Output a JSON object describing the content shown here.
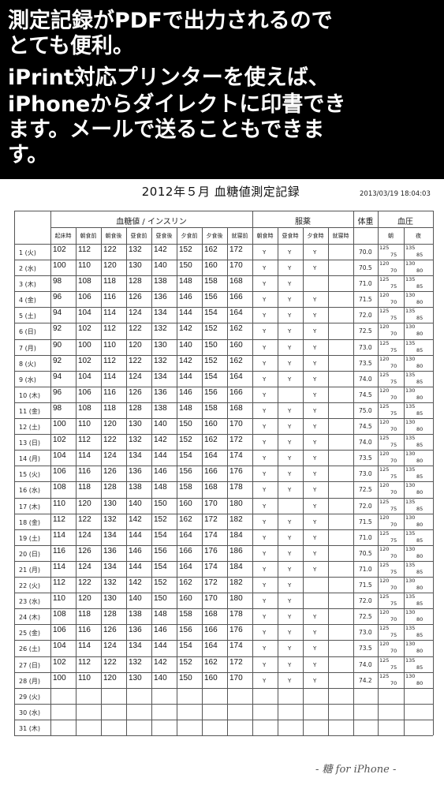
{
  "banner": {
    "lines": [
      "測定記録がPDFで出力されるので",
      "とても便利。",
      "iPrint対応プリンターを使えば、",
      "iPhoneからダイレクトに印書でき",
      "ます。メールで送ることもできま",
      "す。"
    ]
  },
  "document": {
    "title": "2012年５月 血糖値測定記録",
    "timestamp": "2013/03/19 18:04:03",
    "footer": "- 糖 for iPhone -"
  },
  "headers": {
    "glucose_group": "血糖値 / インスリン",
    "medication_group": "服薬",
    "weight": "体重",
    "bp_group": "血圧",
    "glucose_cols": [
      "起床時",
      "朝食前",
      "朝食後",
      "昼食前",
      "昼食後",
      "夕食前",
      "夕食後",
      "就寝前"
    ],
    "medication_cols": [
      "朝食時",
      "昼食時",
      "夕食時",
      "就寝時"
    ],
    "bp_cols": [
      "朝",
      "夜"
    ]
  },
  "rows": [
    {
      "day": "1 (火)",
      "g": [
        102,
        112,
        122,
        132,
        142,
        152,
        162,
        172
      ],
      "m": [
        "Y",
        "Y",
        "Y",
        ""
      ],
      "w": "70.0",
      "bm": [
        "125",
        "75"
      ],
      "bn": [
        "135",
        "85"
      ]
    },
    {
      "day": "2 (水)",
      "g": [
        100,
        110,
        120,
        130,
        140,
        150,
        160,
        170
      ],
      "m": [
        "Y",
        "Y",
        "Y",
        ""
      ],
      "w": "70.5",
      "bm": [
        "120",
        "70"
      ],
      "bn": [
        "130",
        "80"
      ]
    },
    {
      "day": "3 (木)",
      "g": [
        98,
        108,
        118,
        128,
        138,
        148,
        158,
        168
      ],
      "m": [
        "Y",
        "Y",
        "",
        ""
      ],
      "w": "71.0",
      "bm": [
        "125",
        "75"
      ],
      "bn": [
        "135",
        "85"
      ]
    },
    {
      "day": "4 (金)",
      "g": [
        96,
        106,
        116,
        126,
        136,
        146,
        156,
        166
      ],
      "m": [
        "Y",
        "Y",
        "Y",
        ""
      ],
      "w": "71.5",
      "bm": [
        "120",
        "70"
      ],
      "bn": [
        "130",
        "80"
      ]
    },
    {
      "day": "5 (土)",
      "g": [
        94,
        104,
        114,
        124,
        134,
        144,
        154,
        164
      ],
      "m": [
        "Y",
        "Y",
        "Y",
        ""
      ],
      "w": "72.0",
      "bm": [
        "125",
        "75"
      ],
      "bn": [
        "135",
        "85"
      ]
    },
    {
      "day": "6 (日)",
      "g": [
        92,
        102,
        112,
        122,
        132,
        142,
        152,
        162
      ],
      "m": [
        "Y",
        "Y",
        "Y",
        ""
      ],
      "w": "72.5",
      "bm": [
        "120",
        "70"
      ],
      "bn": [
        "130",
        "80"
      ]
    },
    {
      "day": "7 (月)",
      "g": [
        90,
        100,
        110,
        120,
        130,
        140,
        150,
        160
      ],
      "m": [
        "Y",
        "Y",
        "Y",
        ""
      ],
      "w": "73.0",
      "bm": [
        "125",
        "75"
      ],
      "bn": [
        "135",
        "85"
      ]
    },
    {
      "day": "8 (火)",
      "g": [
        92,
        102,
        112,
        122,
        132,
        142,
        152,
        162
      ],
      "m": [
        "Y",
        "Y",
        "Y",
        ""
      ],
      "w": "73.5",
      "bm": [
        "120",
        "70"
      ],
      "bn": [
        "130",
        "80"
      ]
    },
    {
      "day": "9 (水)",
      "g": [
        94,
        104,
        114,
        124,
        134,
        144,
        154,
        164
      ],
      "m": [
        "Y",
        "Y",
        "Y",
        ""
      ],
      "w": "74.0",
      "bm": [
        "125",
        "75"
      ],
      "bn": [
        "135",
        "85"
      ]
    },
    {
      "day": "10 (木)",
      "g": [
        96,
        106,
        116,
        126,
        136,
        146,
        156,
        166
      ],
      "m": [
        "Y",
        "",
        "Y",
        ""
      ],
      "w": "74.5",
      "bm": [
        "120",
        "70"
      ],
      "bn": [
        "130",
        "80"
      ]
    },
    {
      "day": "11 (金)",
      "g": [
        98,
        108,
        118,
        128,
        138,
        148,
        158,
        168
      ],
      "m": [
        "Y",
        "Y",
        "Y",
        ""
      ],
      "w": "75.0",
      "bm": [
        "125",
        "75"
      ],
      "bn": [
        "135",
        "85"
      ]
    },
    {
      "day": "12 (土)",
      "g": [
        100,
        110,
        120,
        130,
        140,
        150,
        160,
        170
      ],
      "m": [
        "Y",
        "Y",
        "Y",
        ""
      ],
      "w": "74.5",
      "bm": [
        "120",
        "70"
      ],
      "bn": [
        "130",
        "80"
      ]
    },
    {
      "day": "13 (日)",
      "g": [
        102,
        112,
        122,
        132,
        142,
        152,
        162,
        172
      ],
      "m": [
        "Y",
        "Y",
        "Y",
        ""
      ],
      "w": "74.0",
      "bm": [
        "125",
        "75"
      ],
      "bn": [
        "135",
        "85"
      ]
    },
    {
      "day": "14 (月)",
      "g": [
        104,
        114,
        124,
        134,
        144,
        154,
        164,
        174
      ],
      "m": [
        "Y",
        "Y",
        "Y",
        ""
      ],
      "w": "73.5",
      "bm": [
        "120",
        "70"
      ],
      "bn": [
        "130",
        "80"
      ]
    },
    {
      "day": "15 (火)",
      "g": [
        106,
        116,
        126,
        136,
        146,
        156,
        166,
        176
      ],
      "m": [
        "Y",
        "Y",
        "Y",
        ""
      ],
      "w": "73.0",
      "bm": [
        "125",
        "75"
      ],
      "bn": [
        "135",
        "85"
      ]
    },
    {
      "day": "16 (水)",
      "g": [
        108,
        118,
        128,
        138,
        148,
        158,
        168,
        178
      ],
      "m": [
        "Y",
        "Y",
        "Y",
        ""
      ],
      "w": "72.5",
      "bm": [
        "120",
        "70"
      ],
      "bn": [
        "130",
        "80"
      ]
    },
    {
      "day": "17 (木)",
      "g": [
        110,
        120,
        130,
        140,
        150,
        160,
        170,
        180
      ],
      "m": [
        "Y",
        "",
        "Y",
        ""
      ],
      "w": "72.0",
      "bm": [
        "125",
        "75"
      ],
      "bn": [
        "135",
        "85"
      ]
    },
    {
      "day": "18 (金)",
      "g": [
        112,
        122,
        132,
        142,
        152,
        162,
        172,
        182
      ],
      "m": [
        "Y",
        "Y",
        "Y",
        ""
      ],
      "w": "71.5",
      "bm": [
        "120",
        "70"
      ],
      "bn": [
        "130",
        "80"
      ]
    },
    {
      "day": "19 (土)",
      "g": [
        114,
        124,
        134,
        144,
        154,
        164,
        174,
        184
      ],
      "m": [
        "Y",
        "Y",
        "Y",
        ""
      ],
      "w": "71.0",
      "bm": [
        "125",
        "75"
      ],
      "bn": [
        "135",
        "85"
      ]
    },
    {
      "day": "20 (日)",
      "g": [
        116,
        126,
        136,
        146,
        156,
        166,
        176,
        186
      ],
      "m": [
        "Y",
        "Y",
        "Y",
        ""
      ],
      "w": "70.5",
      "bm": [
        "120",
        "70"
      ],
      "bn": [
        "130",
        "80"
      ]
    },
    {
      "day": "21 (月)",
      "g": [
        114,
        124,
        134,
        144,
        154,
        164,
        174,
        184
      ],
      "m": [
        "Y",
        "Y",
        "Y",
        ""
      ],
      "w": "71.0",
      "bm": [
        "125",
        "75"
      ],
      "bn": [
        "135",
        "85"
      ]
    },
    {
      "day": "22 (火)",
      "g": [
        112,
        122,
        132,
        142,
        152,
        162,
        172,
        182
      ],
      "m": [
        "Y",
        "Y",
        "",
        ""
      ],
      "w": "71.5",
      "bm": [
        "120",
        "70"
      ],
      "bn": [
        "130",
        "80"
      ]
    },
    {
      "day": "23 (水)",
      "g": [
        110,
        120,
        130,
        140,
        150,
        160,
        170,
        180
      ],
      "m": [
        "Y",
        "Y",
        "",
        ""
      ],
      "w": "72.0",
      "bm": [
        "125",
        "75"
      ],
      "bn": [
        "135",
        "85"
      ]
    },
    {
      "day": "24 (木)",
      "g": [
        108,
        118,
        128,
        138,
        148,
        158,
        168,
        178
      ],
      "m": [
        "Y",
        "Y",
        "Y",
        ""
      ],
      "w": "72.5",
      "bm": [
        "120",
        "70"
      ],
      "bn": [
        "130",
        "80"
      ]
    },
    {
      "day": "25 (金)",
      "g": [
        106,
        116,
        126,
        136,
        146,
        156,
        166,
        176
      ],
      "m": [
        "Y",
        "Y",
        "Y",
        ""
      ],
      "w": "73.0",
      "bm": [
        "125",
        "75"
      ],
      "bn": [
        "135",
        "85"
      ]
    },
    {
      "day": "26 (土)",
      "g": [
        104,
        114,
        124,
        134,
        144,
        154,
        164,
        174
      ],
      "m": [
        "Y",
        "Y",
        "Y",
        ""
      ],
      "w": "73.5",
      "bm": [
        "120",
        "70"
      ],
      "bn": [
        "130",
        "80"
      ]
    },
    {
      "day": "27 (日)",
      "g": [
        102,
        112,
        122,
        132,
        142,
        152,
        162,
        172
      ],
      "m": [
        "Y",
        "Y",
        "Y",
        ""
      ],
      "w": "74.0",
      "bm": [
        "125",
        "75"
      ],
      "bn": [
        "135",
        "85"
      ]
    },
    {
      "day": "28 (月)",
      "g": [
        100,
        110,
        120,
        130,
        140,
        150,
        160,
        170
      ],
      "m": [
        "Y",
        "Y",
        "Y",
        ""
      ],
      "w": "74.2",
      "bm": [
        "125",
        "70"
      ],
      "bn": [
        "130",
        "80"
      ]
    },
    {
      "day": "29 (火)",
      "g": [],
      "m": [
        "",
        "",
        "",
        ""
      ],
      "w": "",
      "bm": [
        "",
        ""
      ],
      "bn": [
        "",
        ""
      ]
    },
    {
      "day": "30 (水)",
      "g": [],
      "m": [
        "",
        "",
        "",
        ""
      ],
      "w": "",
      "bm": [
        "",
        ""
      ],
      "bn": [
        "",
        ""
      ]
    },
    {
      "day": "31 (木)",
      "g": [],
      "m": [
        "",
        "",
        "",
        ""
      ],
      "w": "",
      "bm": [
        "",
        ""
      ],
      "bn": [
        "",
        ""
      ]
    }
  ]
}
